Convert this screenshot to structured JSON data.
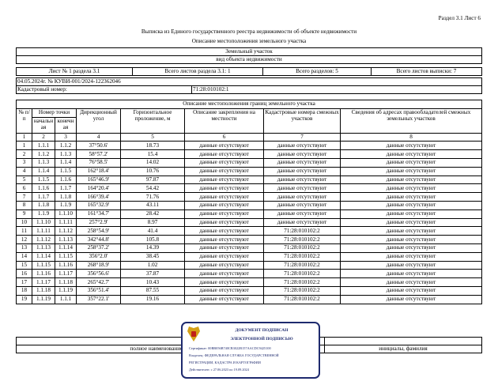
{
  "header": {
    "section_sheet": "Раздел 3.1 Лист 6",
    "title": "Выписка из Единого государственного реестра недвижимости об объекте недвижимости",
    "subtitle": "Описание местоположения земельного участка"
  },
  "object": {
    "type": "Земельный участок",
    "type_caption": "вид объекта недвижимости"
  },
  "sheets": {
    "sheet": "Лист № 1 раздела 3.1",
    "section_sheets": "Всего листов раздела 3.1: 1",
    "sections": "Всего разделов: 5",
    "total_sheets": "Всего листов выписки: 7"
  },
  "doc": {
    "number": "04.05.2024г. № КУВИ-001/2024-122362046",
    "cadastral_label": "Кадастровый номер:",
    "cadastral_value": "71:28:010102:1"
  },
  "table": {
    "title": "Описание местоположения границ земельного участка",
    "headers": {
      "num": "№ п/п",
      "point": "Номер точки",
      "start": "начальн ая",
      "end": "конечн ая",
      "angle": "Дирекционный угол",
      "length": "Горизонтальное проложение, м",
      "fixing": "Описание закрепления на местности",
      "cad": "Кадастровые номера смежных участков",
      "owners": "Сведения об адресах правообладателей смежных земельных участков"
    },
    "col_numbers": [
      "1",
      "2",
      "3",
      "4",
      "5",
      "6",
      "7",
      "8"
    ],
    "rows": [
      [
        "1",
        "1.1.1",
        "1.1.2",
        "37°50.6'",
        "18.73",
        "данные отсутствуют",
        "данные отсутствуют",
        "данные отсутствуют"
      ],
      [
        "2",
        "1.1.2",
        "1.1.3",
        "58°57.2'",
        "15.4",
        "данные отсутствуют",
        "данные отсутствуют",
        "данные отсутствуют"
      ],
      [
        "3",
        "1.1.3",
        "1.1.4",
        "76°58.5'",
        "14.02",
        "данные отсутствуют",
        "данные отсутствуют",
        "данные отсутствуют"
      ],
      [
        "4",
        "1.1.4",
        "1.1.5",
        "162°18.4'",
        "10.76",
        "данные отсутствуют",
        "данные отсутствуют",
        "данные отсутствуют"
      ],
      [
        "5",
        "1.1.5",
        "1.1.6",
        "165°46.9'",
        "97.87",
        "данные отсутствуют",
        "данные отсутствуют",
        "данные отсутствуют"
      ],
      [
        "6",
        "1.1.6",
        "1.1.7",
        "164°20.4'",
        "54.42",
        "данные отсутствуют",
        "данные отсутствуют",
        "данные отсутствуют"
      ],
      [
        "7",
        "1.1.7",
        "1.1.8",
        "166°39.4'",
        "71.76",
        "данные отсутствуют",
        "данные отсутствуют",
        "данные отсутствуют"
      ],
      [
        "8",
        "1.1.8",
        "1.1.9",
        "165°32.9'",
        "43.11",
        "данные отсутствуют",
        "данные отсутствуют",
        "данные отсутствуют"
      ],
      [
        "9",
        "1.1.9",
        "1.1.10",
        "161°34.7'",
        "28.42",
        "данные отсутствуют",
        "данные отсутствуют",
        "данные отсутствуют"
      ],
      [
        "10",
        "1.1.10",
        "1.1.11",
        "257°2.9'",
        "8.97",
        "данные отсутствуют",
        "данные отсутствуют",
        "данные отсутствуют"
      ],
      [
        "11",
        "1.1.11",
        "1.1.12",
        "258°54.9'",
        "41.4",
        "данные отсутствуют",
        "71:28:010102:2",
        "данные отсутствуют"
      ],
      [
        "12",
        "1.1.12",
        "1.1.13",
        "342°44.8'",
        "105.8",
        "данные отсутствуют",
        "71:28:010102:2",
        "данные отсутствуют"
      ],
      [
        "13",
        "1.1.13",
        "1.1.14",
        "258°37.2'",
        "14.39",
        "данные отсутствуют",
        "71:28:010102:2",
        "данные отсутствуют"
      ],
      [
        "14",
        "1.1.14",
        "1.1.15",
        "356°2.0'",
        "38.45",
        "данные отсутствуют",
        "71:28:010102:2",
        "данные отсутствуют"
      ],
      [
        "15",
        "1.1.15",
        "1.1.16",
        "268°18.9'",
        "1.02",
        "данные отсутствуют",
        "71:28:010102:2",
        "данные отсутствуют"
      ],
      [
        "16",
        "1.1.16",
        "1.1.17",
        "356°56.6'",
        "37.87",
        "данные отсутствуют",
        "71:28:010102:2",
        "данные отсутствуют"
      ],
      [
        "17",
        "1.1.17",
        "1.1.18",
        "265°42.7'",
        "10.43",
        "данные отсутствуют",
        "71:28:010102:2",
        "данные отсутствуют"
      ],
      [
        "18",
        "1.1.18",
        "1.1.19",
        "356°51.4'",
        "87.55",
        "данные отсутствуют",
        "71:28:010102:2",
        "данные отсутствуют"
      ],
      [
        "19",
        "1.1.19",
        "1.1.1",
        "357°22.1'",
        "19.16",
        "данные отсутствуют",
        "71:28:010102:2",
        "данные отсутствуют"
      ]
    ]
  },
  "signature": {
    "position_caption": "полное наименование должности",
    "name_caption": "инициалы, фамилия"
  },
  "stamp": {
    "line1": "ДОКУМЕНТ ПОДПИСАН",
    "line2": "ЭЛЕКТРОННОЙ ПОДПИСЬЮ",
    "certificate": "Сертификат: 00BB056B740CB3022B157AACDC9425100",
    "owner": "Владелец: ФЕДЕРАЛЬНАЯ СЛУЖБА ГОСУДАРСТВЕННОЙ",
    "owner2": "РЕГИСТРАЦИИ, КАДАСТРА И КАРТОГРАФИИ",
    "valid": "Действителен: с 27.06.2023 по 19.09.2024",
    "color": "#1e2a6e"
  }
}
